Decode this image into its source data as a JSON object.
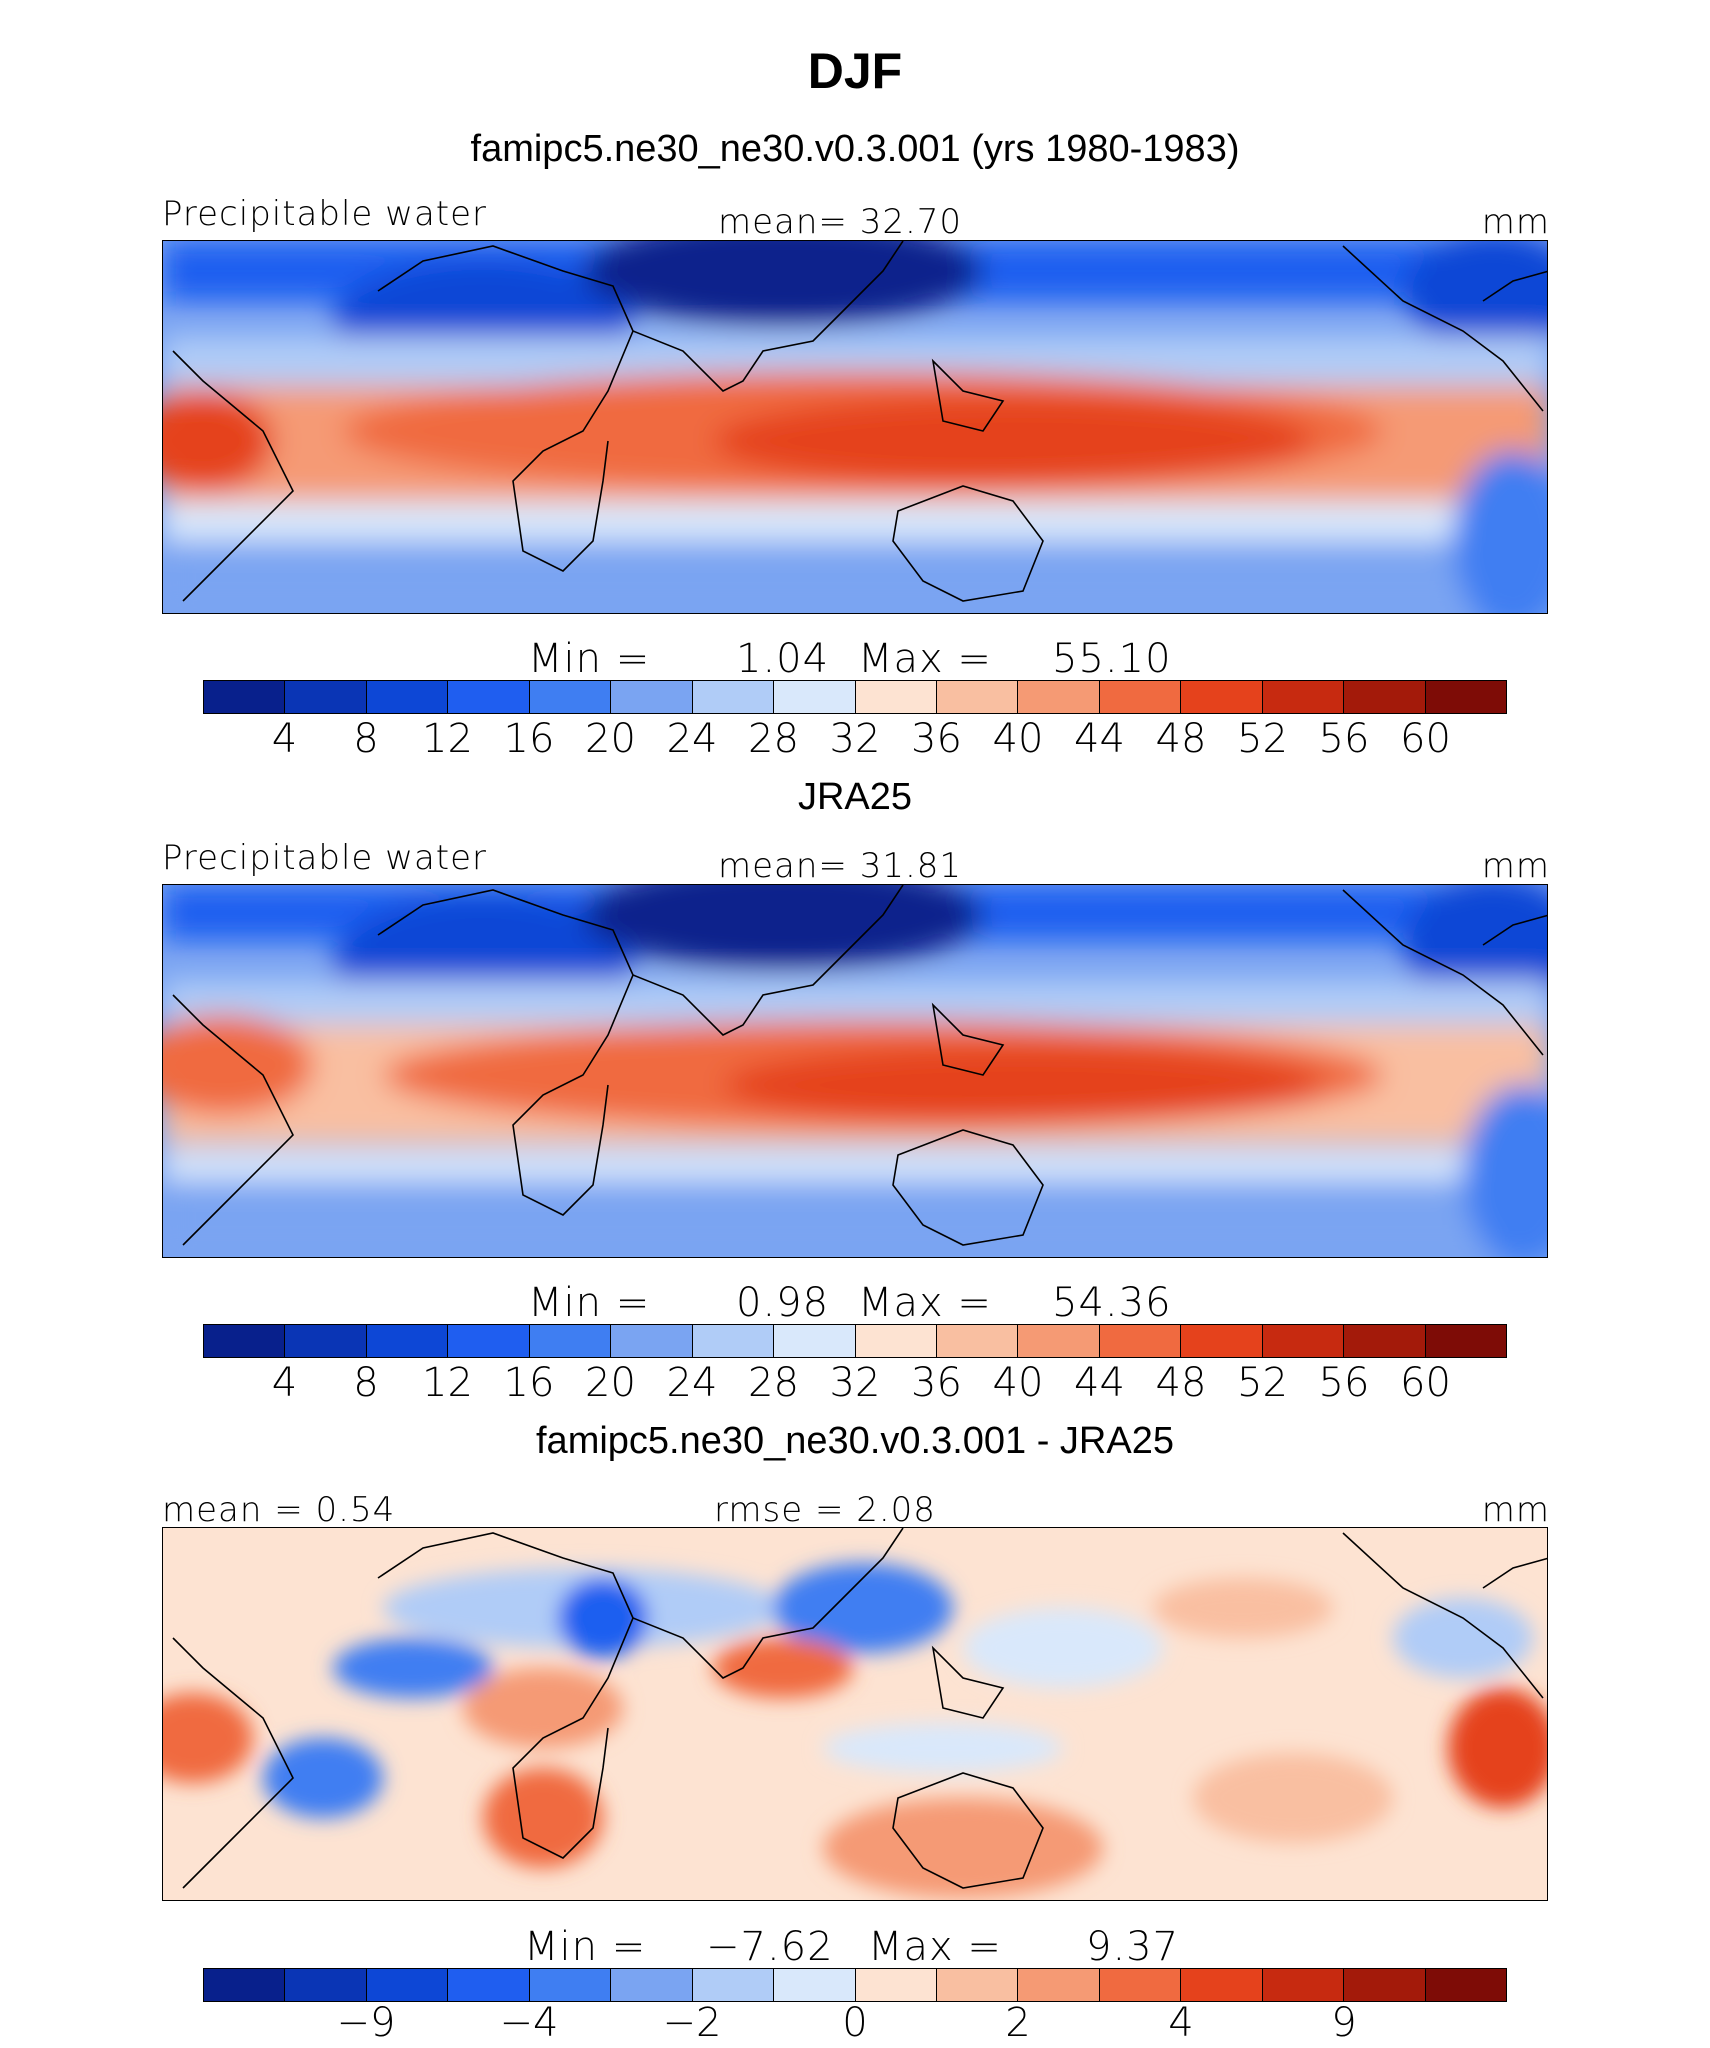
{
  "title": "DJF",
  "units": "mm",
  "panels": [
    {
      "title": "famipc5.ne30_ne30.v0.3.001 (yrs 1980-1983)",
      "left_label": "Precipitable water",
      "center_label": "mean=   32.70",
      "right_label": "mm",
      "min_label": "Min  =",
      "min_value": "1.04",
      "max_label": "Max  =",
      "max_value": "55.10",
      "tick_labels": [
        "4",
        "8",
        "12",
        "16",
        "20",
        "24",
        "28",
        "32",
        "36",
        "40",
        "44",
        "48",
        "52",
        "56",
        "60"
      ]
    },
    {
      "title": "JRA25",
      "left_label": "Precipitable water",
      "center_label": "mean=   31.81",
      "right_label": "mm",
      "min_label": "Min  =",
      "min_value": "0.98",
      "max_label": "Max  =",
      "max_value": "54.36",
      "tick_labels": [
        "4",
        "8",
        "12",
        "16",
        "20",
        "24",
        "28",
        "32",
        "36",
        "40",
        "44",
        "48",
        "52",
        "56",
        "60"
      ]
    },
    {
      "title": "famipc5.ne30_ne30.v0.3.001 - JRA25",
      "left_label": "mean =    0.54",
      "center_label": "rmse =    2.08",
      "right_label": "mm",
      "min_label": "Min  =",
      "min_value": "−7.62",
      "max_label": "Max  =",
      "max_value": "9.37",
      "tick_labels": [
        "−9",
        "−4",
        "−2",
        "0",
        "2",
        "4",
        "9"
      ]
    }
  ],
  "colors": {
    "sequential": [
      "#08208c",
      "#0a35b5",
      "#0d47d6",
      "#1f5ef0",
      "#3f7ef2",
      "#7aa4f2",
      "#b0ccf7",
      "#d9e8fb",
      "#fde3d2",
      "#f9bfa1",
      "#f59a74",
      "#f06a40",
      "#e5421c",
      "#c72a10",
      "#a31a0a",
      "#7e0c06"
    ],
    "diverging": [
      "#08208c",
      "#0a35b5",
      "#0d47d6",
      "#1f5ef0",
      "#3f7ef2",
      "#7aa4f2",
      "#b0ccf7",
      "#d9e8fb",
      "#fde3d2",
      "#f9bfa1",
      "#f59a74",
      "#f06a40",
      "#e5421c",
      "#c72a10",
      "#a31a0a",
      "#7e0c06"
    ]
  }
}
